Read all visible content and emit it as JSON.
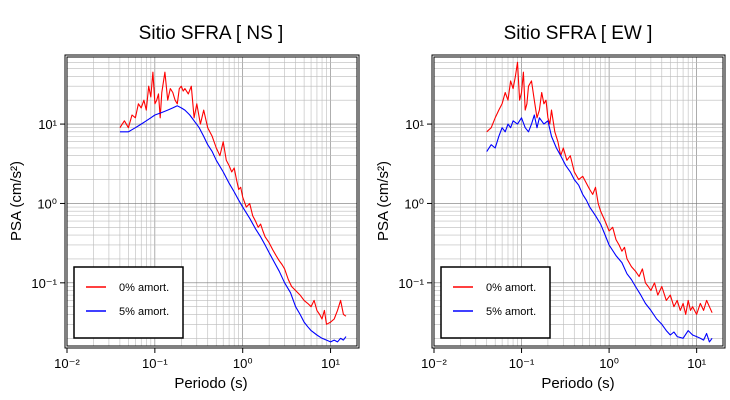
{
  "chart_data": [
    {
      "type": "line",
      "title": "Sitio SFRA [ NS ]",
      "xlabel": "Periodo (s)",
      "ylabel": "PSA (cm/s²)",
      "xscale": "log",
      "yscale": "log",
      "xlim": [
        0.01,
        20
      ],
      "ylim": [
        0.016,
        70
      ],
      "grid": true,
      "legend_position": "bottom-left",
      "x_ticks": [
        {
          "value": 0.01,
          "label": "10⁻²"
        },
        {
          "value": 0.1,
          "label": "10⁻¹"
        },
        {
          "value": 1,
          "label": "10⁰"
        },
        {
          "value": 10,
          "label": "10¹"
        }
      ],
      "y_ticks": [
        {
          "value": 0.1,
          "label": "10⁻¹"
        },
        {
          "value": 1,
          "label": "10⁰"
        },
        {
          "value": 10,
          "label": "10¹"
        }
      ],
      "series": [
        {
          "name": "0% amort.",
          "color": "#ff0000",
          "x": [
            0.04,
            0.045,
            0.05,
            0.055,
            0.06,
            0.065,
            0.07,
            0.075,
            0.08,
            0.085,
            0.09,
            0.095,
            0.1,
            0.105,
            0.11,
            0.115,
            0.12,
            0.13,
            0.14,
            0.15,
            0.16,
            0.17,
            0.18,
            0.19,
            0.2,
            0.21,
            0.22,
            0.24,
            0.26,
            0.28,
            0.3,
            0.33,
            0.36,
            0.4,
            0.45,
            0.5,
            0.55,
            0.6,
            0.65,
            0.7,
            0.75,
            0.8,
            0.85,
            0.9,
            0.95,
            1.0,
            1.1,
            1.2,
            1.3,
            1.4,
            1.5,
            1.6,
            1.7,
            1.8,
            2.0,
            2.2,
            2.4,
            2.6,
            2.8,
            3.0,
            3.3,
            3.6,
            4.0,
            4.5,
            5.0,
            5.5,
            6.0,
            6.5,
            7.0,
            7.5,
            8.0,
            8.5,
            9.0,
            10,
            11,
            12,
            13,
            14,
            15
          ],
          "y": [
            9,
            11,
            9,
            13,
            12,
            18,
            16,
            20,
            15,
            30,
            22,
            45,
            18,
            20,
            24,
            12,
            25,
            45,
            20,
            28,
            25,
            20,
            18,
            28,
            30,
            26,
            28,
            24,
            30,
            12,
            18,
            10,
            15,
            9,
            7,
            5,
            4,
            6,
            3.5,
            3,
            2.5,
            2.8,
            2,
            1.5,
            1.6,
            1.2,
            0.9,
            1.0,
            0.7,
            0.6,
            0.5,
            0.55,
            0.45,
            0.38,
            0.32,
            0.26,
            0.22,
            0.19,
            0.17,
            0.15,
            0.11,
            0.09,
            0.08,
            0.07,
            0.06,
            0.055,
            0.05,
            0.06,
            0.045,
            0.04,
            0.035,
            0.045,
            0.03,
            0.032,
            0.035,
            0.045,
            0.06,
            0.04,
            0.038
          ]
        },
        {
          "name": "5% amort.",
          "color": "#0000ff",
          "x": [
            0.04,
            0.05,
            0.06,
            0.07,
            0.08,
            0.09,
            0.1,
            0.12,
            0.14,
            0.16,
            0.18,
            0.2,
            0.22,
            0.25,
            0.28,
            0.32,
            0.36,
            0.4,
            0.45,
            0.5,
            0.6,
            0.7,
            0.8,
            0.9,
            1.0,
            1.2,
            1.4,
            1.6,
            1.8,
            2.0,
            2.3,
            2.6,
            3.0,
            3.5,
            4.0,
            4.5,
            5.0,
            5.5,
            6.0,
            7.0,
            8.0,
            9.0,
            10,
            11,
            12,
            13,
            14,
            15
          ],
          "y": [
            8,
            8,
            9,
            10,
            11,
            12,
            13,
            14,
            15,
            16,
            17,
            16,
            15,
            13,
            11,
            9,
            7,
            5.5,
            4.5,
            3.5,
            2.5,
            1.8,
            1.4,
            1.1,
            0.9,
            0.65,
            0.48,
            0.38,
            0.3,
            0.24,
            0.18,
            0.14,
            0.1,
            0.075,
            0.05,
            0.04,
            0.032,
            0.028,
            0.025,
            0.022,
            0.02,
            0.019,
            0.018,
            0.019,
            0.018,
            0.02,
            0.019,
            0.021
          ]
        }
      ]
    },
    {
      "type": "line",
      "title": "Sitio SFRA [ EW ]",
      "xlabel": "Periodo (s)",
      "ylabel": "PSA (cm/s²)",
      "xscale": "log",
      "yscale": "log",
      "xlim": [
        0.01,
        20
      ],
      "ylim": [
        0.016,
        70
      ],
      "grid": true,
      "legend_position": "bottom-left",
      "x_ticks": [
        {
          "value": 0.01,
          "label": "10⁻²"
        },
        {
          "value": 0.1,
          "label": "10⁻¹"
        },
        {
          "value": 1,
          "label": "10⁰"
        },
        {
          "value": 10,
          "label": "10¹"
        }
      ],
      "y_ticks": [
        {
          "value": 0.1,
          "label": "10⁻¹"
        },
        {
          "value": 1,
          "label": "10⁰"
        },
        {
          "value": 10,
          "label": "10¹"
        }
      ],
      "series": [
        {
          "name": "0% amort.",
          "color": "#ff0000",
          "x": [
            0.04,
            0.045,
            0.05,
            0.055,
            0.06,
            0.065,
            0.07,
            0.075,
            0.08,
            0.085,
            0.09,
            0.095,
            0.1,
            0.105,
            0.11,
            0.115,
            0.12,
            0.13,
            0.14,
            0.15,
            0.16,
            0.17,
            0.18,
            0.19,
            0.2,
            0.21,
            0.22,
            0.24,
            0.26,
            0.28,
            0.3,
            0.33,
            0.36,
            0.4,
            0.45,
            0.5,
            0.55,
            0.6,
            0.65,
            0.7,
            0.75,
            0.8,
            0.9,
            1.0,
            1.1,
            1.2,
            1.3,
            1.4,
            1.5,
            1.6,
            1.8,
            2.0,
            2.2,
            2.4,
            2.6,
            2.8,
            3.0,
            3.3,
            3.6,
            4.0,
            4.5,
            5.0,
            5.5,
            6.0,
            6.5,
            7.0,
            7.5,
            8.0,
            8.5,
            9.0,
            10,
            11,
            12,
            13,
            14,
            15
          ],
          "y": [
            8,
            9,
            12,
            15,
            18,
            25,
            20,
            35,
            28,
            40,
            60,
            20,
            25,
            45,
            15,
            18,
            30,
            35,
            20,
            12,
            15,
            25,
            18,
            20,
            12,
            10,
            15,
            8,
            6,
            4,
            5,
            3.5,
            4,
            2.5,
            2,
            2.2,
            1.8,
            1.5,
            1.3,
            1.6,
            1.0,
            0.8,
            0.6,
            0.45,
            0.5,
            0.35,
            0.3,
            0.25,
            0.28,
            0.2,
            0.16,
            0.14,
            0.12,
            0.15,
            0.1,
            0.09,
            0.08,
            0.1,
            0.07,
            0.09,
            0.06,
            0.07,
            0.05,
            0.06,
            0.045,
            0.055,
            0.04,
            0.06,
            0.045,
            0.05,
            0.04,
            0.055,
            0.045,
            0.06,
            0.05,
            0.042
          ]
        },
        {
          "name": "5% amort.",
          "color": "#0000ff",
          "x": [
            0.04,
            0.045,
            0.05,
            0.055,
            0.06,
            0.065,
            0.07,
            0.075,
            0.08,
            0.09,
            0.1,
            0.11,
            0.12,
            0.13,
            0.14,
            0.15,
            0.16,
            0.18,
            0.2,
            0.22,
            0.25,
            0.28,
            0.32,
            0.36,
            0.4,
            0.45,
            0.5,
            0.55,
            0.6,
            0.7,
            0.8,
            0.9,
            1.0,
            1.2,
            1.4,
            1.6,
            1.8,
            2.0,
            2.3,
            2.6,
            3.0,
            3.5,
            4.0,
            4.5,
            5.0,
            5.5,
            6.0,
            7.0,
            8.0,
            9.0,
            10,
            11,
            12,
            13,
            14,
            15
          ],
          "y": [
            4.5,
            5.5,
            5,
            7,
            9,
            8,
            10,
            9,
            11,
            10,
            12,
            9,
            8,
            10,
            13,
            9,
            12,
            10,
            11,
            7,
            5,
            4,
            3,
            2.5,
            2,
            1.7,
            1.3,
            1.1,
            0.9,
            0.7,
            0.55,
            0.4,
            0.3,
            0.22,
            0.18,
            0.13,
            0.11,
            0.09,
            0.07,
            0.055,
            0.045,
            0.035,
            0.03,
            0.025,
            0.022,
            0.024,
            0.021,
            0.02,
            0.025,
            0.022,
            0.021,
            0.02,
            0.019,
            0.023,
            0.018,
            0.02
          ]
        }
      ]
    }
  ]
}
